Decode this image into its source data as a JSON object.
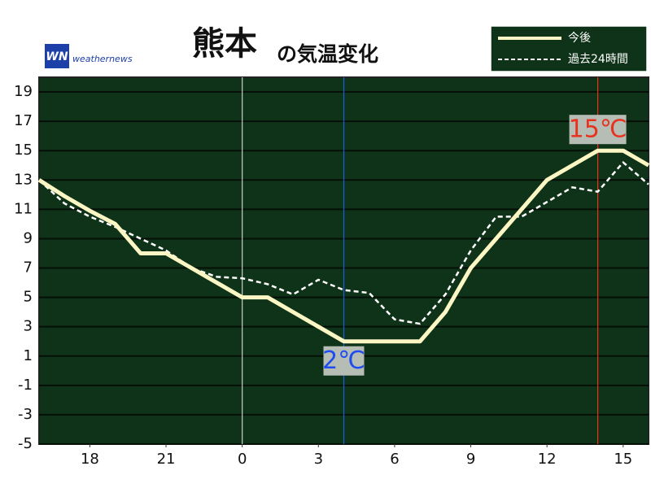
{
  "chart_data": {
    "type": "line",
    "location": "熊本",
    "title": "の気温変化",
    "logo": "WN",
    "brand": "weathernews",
    "x": [
      -8,
      -7,
      -6,
      -5,
      -4,
      -3,
      -2,
      -1,
      0,
      1,
      2,
      3,
      4,
      5,
      6,
      7,
      8,
      9,
      10,
      11,
      12,
      13,
      14,
      15,
      16
    ],
    "series": [
      {
        "name": "今後",
        "color": "#fbf6c4",
        "dashed": false,
        "values": [
          13,
          11.9,
          10.9,
          10,
          8,
          8,
          7,
          6,
          5,
          5,
          4,
          3,
          2,
          2,
          2,
          2,
          4,
          7,
          9,
          11,
          13,
          14,
          15,
          15,
          14
        ]
      },
      {
        "name": "過去24時間",
        "color": "#ffffff",
        "dashed": true,
        "values": [
          13,
          11.4,
          10.5,
          9.8,
          9,
          8.2,
          7,
          6.4,
          6.3,
          5.9,
          5.2,
          6.2,
          5.5,
          5.3,
          3.5,
          3.2,
          5.2,
          8.2,
          10.5,
          10.5,
          11.5,
          12.5,
          12.2,
          14.2,
          12.7
        ]
      }
    ],
    "xlim": [
      -8,
      16
    ],
    "xticks": [
      {
        "value": -6,
        "label": "18"
      },
      {
        "value": -3,
        "label": "21"
      },
      0,
      3,
      6,
      9,
      12,
      15
    ],
    "ylim": [
      -5,
      20
    ],
    "yticks": [
      -5,
      -3,
      -1,
      1,
      3,
      5,
      7,
      9,
      11,
      13,
      15,
      17,
      19
    ],
    "grid": true,
    "vlines": [
      {
        "x": 0,
        "color": "#cccccc"
      },
      {
        "x": 4,
        "color": "#1f5fd6"
      },
      {
        "x": 14,
        "color": "#e8321e"
      }
    ],
    "annotations": [
      {
        "text": "2℃",
        "x": 4,
        "y": 2,
        "color": "#1f4cf0",
        "position": "below"
      },
      {
        "text": "15℃",
        "x": 14,
        "y": 15,
        "color": "#e8321e",
        "position": "above"
      }
    ]
  }
}
